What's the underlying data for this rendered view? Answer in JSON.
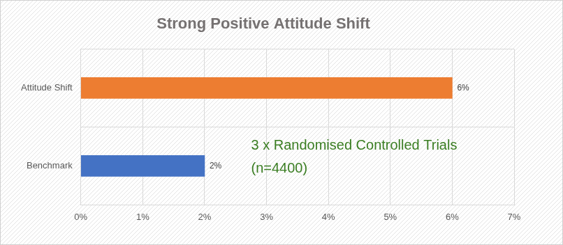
{
  "chart_data": {
    "type": "bar",
    "title": "Strong Positive Attitude Shift",
    "orientation": "horizontal",
    "categories": [
      "Attitude Shift",
      "Benchmark"
    ],
    "values": [
      6,
      2
    ],
    "value_labels": [
      "6%",
      "2%"
    ],
    "colors": [
      "#ed7d31",
      "#4472c4"
    ],
    "xlim": [
      0,
      7
    ],
    "xticks": [
      {
        "value": 0,
        "label": "0%"
      },
      {
        "value": 1,
        "label": "1%"
      },
      {
        "value": 2,
        "label": "2%"
      },
      {
        "value": 3,
        "label": "3%"
      },
      {
        "value": 4,
        "label": "4%"
      },
      {
        "value": 5,
        "label": "5%"
      },
      {
        "value": 6,
        "label": "6%"
      },
      {
        "value": 7,
        "label": "7%"
      }
    ],
    "grid": true,
    "data_labels": true,
    "annotations": [
      {
        "text": [
          "3 x Randomised Controlled Trials",
          "(n=4400)"
        ],
        "color": "#3a7d22"
      }
    ]
  }
}
